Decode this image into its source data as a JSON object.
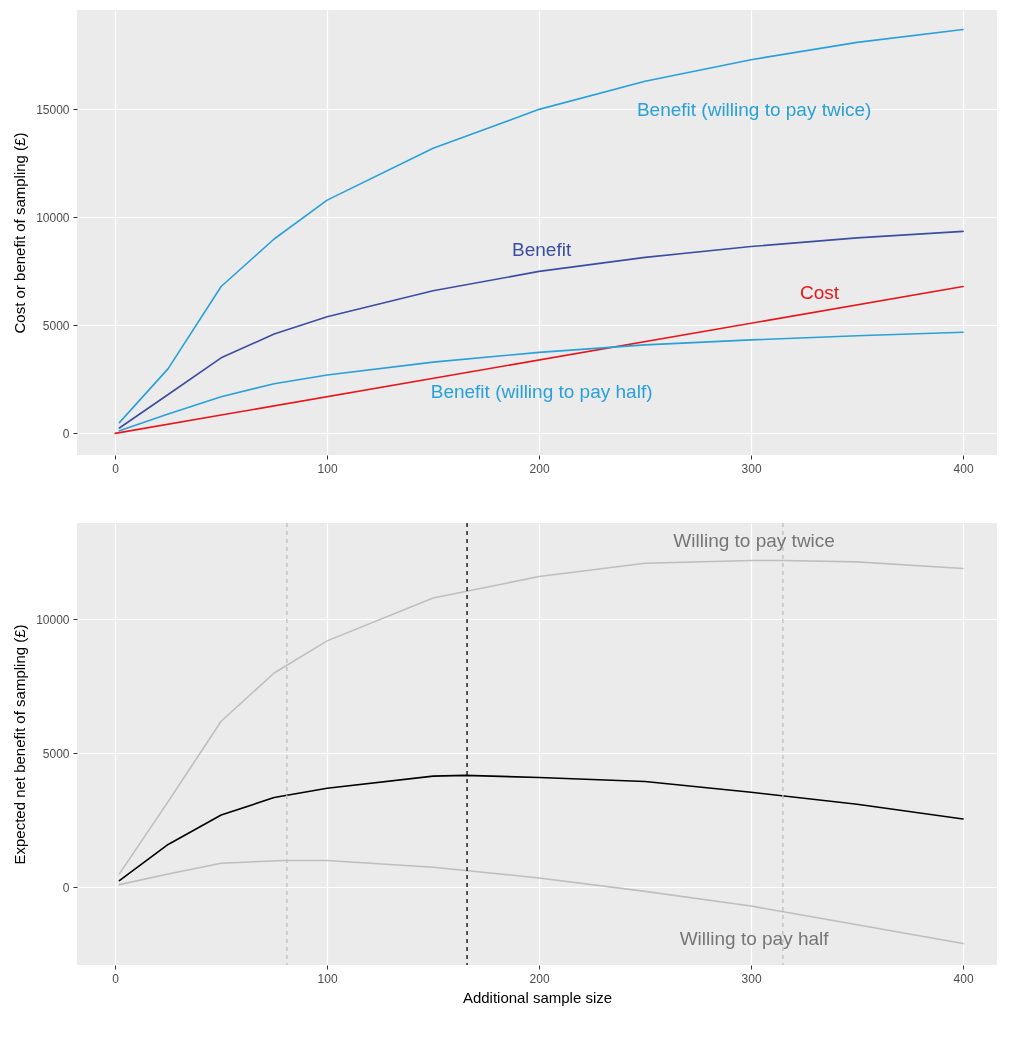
{
  "chart_data": [
    {
      "type": "line",
      "ylabel": "Cost or benefit of sampling (£)",
      "xlim": [
        -18,
        416
      ],
      "ylim": [
        -1000,
        19600
      ],
      "xticks": [
        0,
        100,
        200,
        300,
        400
      ],
      "yticks": [
        0,
        5000,
        10000,
        15000
      ],
      "grid": true,
      "series": [
        {
          "color": "#29a0d8",
          "x": [
            2,
            25,
            50,
            75,
            100,
            150,
            200,
            250,
            300,
            350,
            400
          ],
          "values": [
            500,
            3000,
            6800,
            9000,
            10800,
            13200,
            15000,
            16300,
            17300,
            18100,
            18700
          ]
        },
        {
          "color": "#3b4ea0",
          "x": [
            2,
            25,
            50,
            75,
            100,
            150,
            200,
            250,
            300,
            350,
            400
          ],
          "values": [
            250,
            1800,
            3500,
            4600,
            5400,
            6600,
            7500,
            8150,
            8650,
            9050,
            9350
          ]
        },
        {
          "color": "#e8161b",
          "x": [
            0,
            400
          ],
          "values": [
            0,
            6800
          ]
        },
        {
          "color": "#29a0d8",
          "x": [
            2,
            25,
            50,
            75,
            100,
            150,
            200,
            250,
            300,
            350,
            400
          ],
          "values": [
            120,
            900,
            1700,
            2300,
            2700,
            3300,
            3750,
            4100,
            4330,
            4520,
            4680
          ]
        }
      ],
      "annotations": [
        "Benefit (willing to pay twice)",
        "Benefit",
        "Cost",
        "Benefit (willing to pay half)"
      ]
    },
    {
      "type": "line",
      "xlabel": "Additional sample size",
      "ylabel": "Expected net benefit of sampling (£)",
      "xlim": [
        -18,
        416
      ],
      "ylim": [
        -2900,
        13600
      ],
      "xticks": [
        0,
        100,
        200,
        300,
        400
      ],
      "yticks": [
        0,
        5000,
        10000
      ],
      "grid": true,
      "series": [
        {
          "color": "#bebebe",
          "x": [
            2,
            25,
            50,
            75,
            100,
            150,
            200,
            250,
            300,
            315,
            350,
            400
          ],
          "values": [
            500,
            3200,
            6200,
            8000,
            9200,
            10800,
            11600,
            12100,
            12200,
            12200,
            12150,
            11900
          ]
        },
        {
          "color": "#bebebe",
          "x": [
            2,
            25,
            50,
            80,
            100,
            150,
            200,
            250,
            300,
            350,
            400
          ],
          "values": [
            100,
            500,
            900,
            1000,
            1000,
            750,
            350,
            -150,
            -700,
            -1400,
            -2100
          ]
        },
        {
          "color": "#000000",
          "x": [
            2,
            25,
            50,
            75,
            100,
            150,
            165,
            200,
            250,
            300,
            350,
            400
          ],
          "values": [
            250,
            1600,
            2700,
            3350,
            3700,
            4150,
            4180,
            4100,
            3950,
            3550,
            3100,
            2550
          ]
        }
      ],
      "ref_lines": [
        {
          "axis": "x",
          "value": 81,
          "color": "#bebebe",
          "line_style": "dashed"
        },
        {
          "axis": "x",
          "value": 166,
          "color": "#000000",
          "line_style": "dashed"
        },
        {
          "axis": "x",
          "value": 315,
          "color": "#bebebe",
          "line_style": "dashed"
        }
      ],
      "annotations": [
        "Willing to pay twice",
        "Willing to pay half"
      ]
    }
  ]
}
